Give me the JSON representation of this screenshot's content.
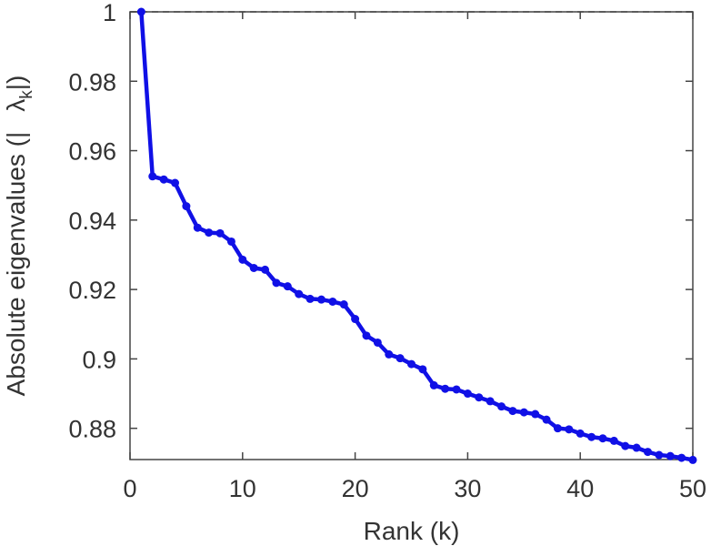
{
  "chart_data": {
    "type": "line",
    "title": "",
    "xlabel": "Rank (k)",
    "ylabel_main": "Absolute eigenvalues (|",
    "ylabel_lambda": "λ",
    "ylabel_sub": "k",
    "ylabel_close": "|)",
    "xlim": [
      0,
      50
    ],
    "ylim": [
      0.871,
      1.0
    ],
    "xticks": [
      0,
      10,
      20,
      30,
      40,
      50
    ],
    "xtick_labels": [
      "0",
      "10",
      "20",
      "30",
      "40",
      "50"
    ],
    "yticks": [
      0.88,
      0.9,
      0.92,
      0.94,
      0.96,
      0.98,
      1.0
    ],
    "ytick_labels": [
      "0.88",
      "0.9",
      "0.92",
      "0.94",
      "0.96",
      "0.98",
      "1"
    ],
    "grid": false,
    "colors": {
      "series": "#1010e6",
      "axis": "#444444",
      "text": "#333333"
    },
    "series": [
      {
        "x": [
          1,
          2,
          3,
          4,
          5,
          6,
          7,
          8,
          9,
          10,
          11,
          12,
          13,
          14,
          15,
          16,
          17,
          18,
          19,
          20,
          21,
          22,
          23,
          24,
          25,
          26,
          27,
          28,
          29,
          30,
          31,
          32,
          33,
          34,
          35,
          36,
          37,
          38,
          39,
          40,
          41,
          42,
          43,
          44,
          45,
          46,
          47,
          48,
          49,
          50
        ],
        "values": [
          1.0,
          0.9526,
          0.9517,
          0.9507,
          0.944,
          0.9378,
          0.9364,
          0.9362,
          0.9338,
          0.9286,
          0.9262,
          0.9257,
          0.9219,
          0.9209,
          0.9187,
          0.9173,
          0.9171,
          0.9165,
          0.9157,
          0.9115,
          0.9067,
          0.9047,
          0.9013,
          0.9002,
          0.8985,
          0.897,
          0.8924,
          0.8914,
          0.8912,
          0.89,
          0.8889,
          0.8878,
          0.8863,
          0.885,
          0.8846,
          0.8841,
          0.8825,
          0.88,
          0.8797,
          0.8785,
          0.8775,
          0.8771,
          0.8764,
          0.8749,
          0.8744,
          0.8732,
          0.8723,
          0.872,
          0.8715,
          0.8709
        ]
      }
    ]
  }
}
